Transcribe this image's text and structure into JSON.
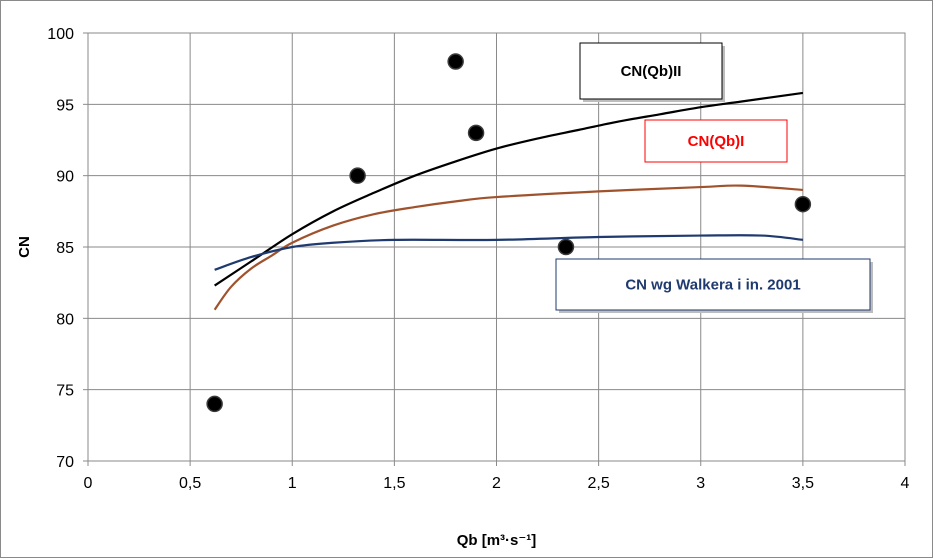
{
  "chart_data": {
    "type": "scatter",
    "xlabel": "Qb [m³·s⁻¹]",
    "ylabel": "CN",
    "xlim": [
      0,
      4
    ],
    "ylim": [
      70,
      100
    ],
    "x_ticks": [
      0,
      0.5,
      1,
      1.5,
      2,
      2.5,
      3,
      3.5,
      4
    ],
    "x_tick_labels": [
      "0",
      "0,5",
      "1",
      "1,5",
      "2",
      "2,5",
      "3",
      "3,5",
      "4"
    ],
    "y_ticks": [
      70,
      75,
      80,
      85,
      90,
      95,
      100
    ],
    "y_tick_labels": [
      "70",
      "75",
      "80",
      "85",
      "90",
      "95",
      "100"
    ],
    "grid": true,
    "points": {
      "color": "#000000",
      "x": [
        0.62,
        1.32,
        1.8,
        1.9,
        2.34,
        3.5
      ],
      "y": [
        74,
        90,
        98,
        93,
        85,
        88
      ]
    },
    "series": [
      {
        "name": "CN(Qb)II",
        "color": "#000000",
        "text_color": "#000000",
        "box_border": "#000000",
        "x": [
          0.62,
          0.8,
          1.0,
          1.2,
          1.4,
          1.6,
          1.8,
          2.0,
          2.2,
          2.4,
          2.6,
          2.8,
          3.0,
          3.2,
          3.5
        ],
        "y": [
          82.3,
          84.0,
          85.9,
          87.5,
          88.8,
          90.0,
          91.0,
          91.9,
          92.6,
          93.2,
          93.8,
          94.3,
          94.8,
          95.2,
          95.8
        ]
      },
      {
        "name": "CN(Qb)I",
        "color": "#a0522d",
        "text_color": "#ff0000",
        "box_border": "#ff0000",
        "x": [
          0.62,
          0.7,
          0.8,
          0.9,
          1.0,
          1.2,
          1.4,
          1.6,
          1.8,
          2.0,
          2.5,
          3.0,
          3.2,
          3.5
        ],
        "y": [
          80.6,
          82.2,
          83.5,
          84.4,
          85.3,
          86.5,
          87.3,
          87.8,
          88.2,
          88.5,
          88.9,
          89.2,
          89.3,
          89.0
        ]
      },
      {
        "name": "CN wg Walkera  i in. 2001",
        "color": "#1f3a6e",
        "text_color": "#1f3a6e",
        "box_border": "#1f3a6e",
        "x": [
          0.62,
          0.8,
          1.0,
          1.2,
          1.5,
          2.0,
          2.5,
          3.0,
          3.3,
          3.5
        ],
        "y": [
          83.4,
          84.3,
          85.0,
          85.3,
          85.5,
          85.5,
          85.7,
          85.8,
          85.8,
          85.5
        ]
      }
    ]
  }
}
